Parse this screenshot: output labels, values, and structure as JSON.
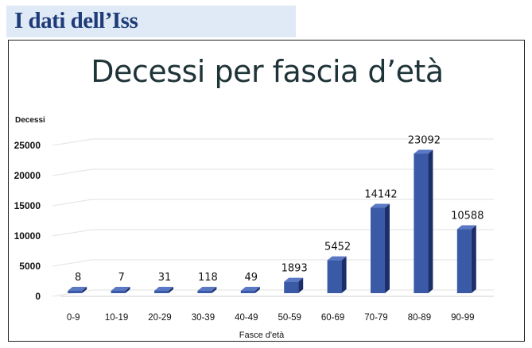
{
  "header": {
    "title": "I dati dell’Iss"
  },
  "chart_data": {
    "type": "bar",
    "title": "Decessi per fascia d’età",
    "ylabel": "Decessi",
    "xlabel": "Fasce d'età",
    "categories": [
      "0-9",
      "10-19",
      "20-29",
      "30-39",
      "40-49",
      "50-59",
      "60-69",
      "70-79",
      "80-89",
      "90-99"
    ],
    "values": [
      8,
      7,
      31,
      118,
      49,
      1893,
      5452,
      14142,
      23092,
      10588
    ],
    "ylim": [
      0,
      25000
    ],
    "yticks": [
      0,
      5000,
      10000,
      15000,
      20000,
      25000
    ],
    "grid": true,
    "legend": "none",
    "colors": {
      "bar_front": "#3a5aa8",
      "bar_side": "#1c2f6b",
      "bar_top": "#5b78c4",
      "grid": "#e2e2e2"
    }
  }
}
